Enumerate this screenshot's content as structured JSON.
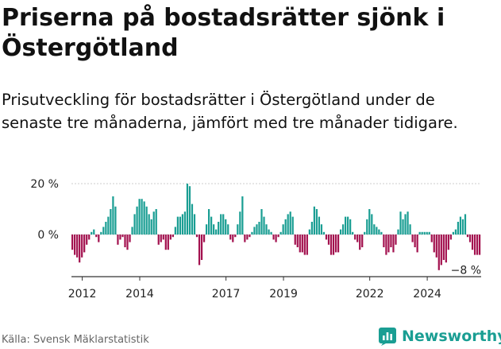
{
  "title": "Priserna på bostadsrätter sjönk i Östergötland",
  "subtitle": "Prisutveckling för bostadsrätter i Östergötland under de senaste tre månaderna, jämfört med tre månader tidigare.",
  "source": "Källa: Svensk Mäklarstatistik",
  "brand": {
    "name": "Newsworthy",
    "icon": "newsworthy-logo-icon"
  },
  "colors": {
    "positive": "#1a9e93",
    "negative": "#a3124f",
    "axis": "#333333",
    "grid": "#cccccc"
  },
  "chart_data": {
    "type": "bar",
    "title": "",
    "xlabel": "",
    "ylabel": "",
    "ylim": [
      -15,
      22
    ],
    "y_ticks": [
      {
        "value": 20,
        "label": "20 %"
      },
      {
        "value": 0,
        "label": "0 %"
      }
    ],
    "x_ticks": [
      {
        "index": 4,
        "label": "2012"
      },
      {
        "index": 28,
        "label": "2014"
      },
      {
        "index": 64,
        "label": "2017"
      },
      {
        "index": 88,
        "label": "2019"
      },
      {
        "index": 124,
        "label": "2022"
      },
      {
        "index": 148,
        "label": "2024"
      }
    ],
    "last_value_label": "−8 %",
    "values": [
      -6,
      -8,
      -9,
      -11,
      -9,
      -7,
      -4,
      -2,
      1,
      2,
      -1,
      -3,
      1,
      3,
      5,
      7,
      10,
      15,
      11,
      -4,
      -2,
      -1,
      -5,
      -6,
      -3,
      3,
      8,
      11,
      14,
      14,
      13,
      11,
      8,
      6,
      9,
      10,
      -4,
      -3,
      -2,
      -6,
      -6,
      -2,
      -1,
      3,
      7,
      7,
      8,
      9,
      20,
      19,
      12,
      8,
      -1,
      -12,
      -10,
      -3,
      4,
      10,
      7,
      4,
      2,
      5,
      8,
      8,
      6,
      4,
      -2,
      -3,
      -1,
      4,
      9,
      15,
      -3,
      -2,
      -1,
      1,
      3,
      4,
      5,
      10,
      7,
      4,
      2,
      1,
      -2,
      -3,
      -1,
      1,
      4,
      6,
      8,
      9,
      7,
      -4,
      -5,
      -7,
      -7,
      -8,
      -8,
      2,
      5,
      11,
      10,
      7,
      4,
      1,
      -2,
      -4,
      -8,
      -8,
      -7,
      -7,
      2,
      4,
      7,
      7,
      6,
      1,
      -2,
      -3,
      -6,
      -5,
      1,
      6,
      10,
      8,
      4,
      3,
      2,
      1,
      -5,
      -8,
      -7,
      -5,
      -7,
      -4,
      2,
      9,
      6,
      8,
      9,
      4,
      -3,
      -5,
      -7,
      1,
      1,
      1,
      1,
      1,
      -3,
      -7,
      -9,
      -14,
      -12,
      -10,
      -11,
      -6,
      -2,
      1,
      2,
      5,
      7,
      6,
      8,
      -1,
      -3,
      -6,
      -8,
      -8,
      -8
    ]
  }
}
